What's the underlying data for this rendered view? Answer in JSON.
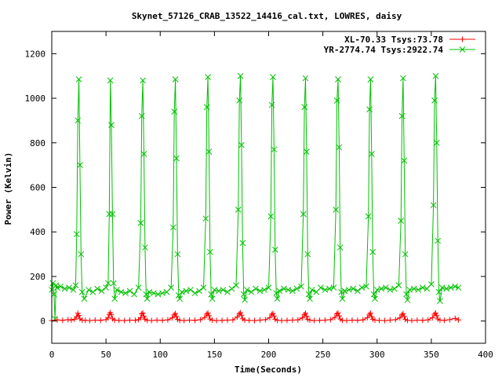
{
  "chart_data": {
    "type": "line",
    "title": "Skynet_57126_CRAB_13522_14416_cal.txt, LOWRES, daisy",
    "xlabel": "Time(Seconds)",
    "ylabel": "Power (Kelvin)",
    "xlim": [
      0,
      400
    ],
    "ylim": [
      -100,
      1300
    ],
    "xticks": [
      0,
      50,
      100,
      150,
      200,
      250,
      300,
      350,
      400
    ],
    "yticks": [
      0,
      200,
      400,
      600,
      800,
      1000,
      1200
    ],
    "grid": false,
    "legend_position": "top-right",
    "series": [
      {
        "name": "XL-70.33 Tsys:73.78",
        "color": "#ff0000",
        "marker": "plus",
        "x": [
          0,
          5,
          10,
          15,
          18,
          21,
          23,
          24,
          25,
          26,
          28,
          31,
          35,
          40,
          45,
          50,
          52,
          53,
          54,
          55,
          56,
          58,
          62,
          67,
          72,
          77,
          80,
          82,
          83,
          84,
          85,
          86,
          88,
          92,
          97,
          102,
          107,
          111,
          113,
          114,
          115,
          116,
          118,
          122,
          127,
          132,
          137,
          141,
          143,
          144,
          145,
          146,
          148,
          152,
          157,
          162,
          167,
          171,
          173,
          174,
          175,
          176,
          178,
          182,
          187,
          192,
          197,
          201,
          203,
          204,
          205,
          206,
          208,
          212,
          217,
          222,
          227,
          231,
          233,
          234,
          235,
          236,
          238,
          242,
          247,
          252,
          257,
          261,
          263,
          264,
          265,
          266,
          268,
          272,
          277,
          282,
          287,
          291,
          293,
          294,
          295,
          296,
          298,
          302,
          307,
          312,
          317,
          321,
          323,
          324,
          325,
          326,
          328,
          332,
          337,
          342,
          347,
          351,
          353,
          354,
          355,
          356,
          358,
          362,
          367,
          372,
          375
        ],
        "y": [
          2,
          5,
          3,
          6,
          4,
          8,
          20,
          35,
          25,
          10,
          4,
          3,
          2,
          4,
          3,
          6,
          15,
          30,
          38,
          28,
          10,
          4,
          3,
          2,
          4,
          3,
          6,
          15,
          32,
          36,
          22,
          8,
          3,
          2,
          4,
          3,
          5,
          14,
          28,
          34,
          20,
          7,
          3,
          2,
          4,
          3,
          6,
          16,
          31,
          36,
          24,
          9,
          4,
          2,
          3,
          4,
          5,
          18,
          33,
          37,
          26,
          10,
          4,
          3,
          2,
          4,
          6,
          15,
          30,
          34,
          22,
          8,
          3,
          2,
          3,
          4,
          5,
          14,
          29,
          35,
          21,
          7,
          4,
          2,
          3,
          4,
          6,
          16,
          32,
          36,
          23,
          9,
          3,
          2,
          4,
          3,
          5,
          15,
          30,
          35,
          20,
          8,
          4,
          3,
          2,
          4,
          6,
          14,
          28,
          33,
          21,
          7,
          3,
          2,
          4,
          3,
          5,
          15,
          31,
          36,
          24,
          9,
          4,
          3,
          6,
          12,
          5
        ]
      },
      {
        "name": "YR-2774.74 Tsys:2922.74",
        "color": "#00c000",
        "marker": "cross",
        "x": [
          0,
          1,
          2,
          3,
          4,
          5,
          8,
          12,
          16,
          20,
          22,
          23,
          24,
          25,
          26,
          27,
          28,
          30,
          34,
          38,
          42,
          46,
          50,
          52,
          53,
          54,
          55,
          56,
          57,
          58,
          60,
          64,
          68,
          72,
          76,
          80,
          82,
          83,
          84,
          85,
          86,
          87,
          88,
          90,
          94,
          98,
          102,
          106,
          110,
          112,
          113,
          114,
          115,
          116,
          117,
          118,
          120,
          124,
          128,
          132,
          136,
          140,
          142,
          143,
          144,
          145,
          146,
          147,
          148,
          150,
          154,
          158,
          162,
          166,
          170,
          172,
          173,
          174,
          175,
          176,
          177,
          178,
          180,
          184,
          188,
          192,
          196,
          200,
          202,
          203,
          204,
          205,
          206,
          207,
          208,
          210,
          214,
          218,
          222,
          226,
          230,
          232,
          233,
          234,
          235,
          236,
          237,
          238,
          240,
          244,
          248,
          252,
          256,
          260,
          262,
          263,
          264,
          265,
          266,
          267,
          268,
          270,
          274,
          278,
          282,
          286,
          290,
          292,
          293,
          294,
          295,
          296,
          297,
          298,
          300,
          304,
          308,
          312,
          316,
          320,
          322,
          323,
          324,
          325,
          326,
          327,
          328,
          330,
          334,
          338,
          342,
          346,
          350,
          352,
          353,
          354,
          355,
          356,
          357,
          358,
          360,
          364,
          368,
          372,
          375
        ],
        "y": [
          140,
          170,
          120,
          10,
          160,
          150,
          155,
          145,
          150,
          140,
          160,
          390,
          900,
          1085,
          700,
          300,
          130,
          100,
          140,
          130,
          145,
          135,
          150,
          170,
          480,
          1080,
          880,
          480,
          170,
          100,
          140,
          130,
          125,
          135,
          120,
          150,
          440,
          920,
          1080,
          750,
          330,
          120,
          100,
          130,
          125,
          120,
          125,
          130,
          150,
          420,
          940,
          1085,
          730,
          300,
          115,
          100,
          130,
          135,
          140,
          125,
          135,
          150,
          460,
          960,
          1095,
          760,
          310,
          120,
          100,
          140,
          135,
          140,
          130,
          145,
          160,
          500,
          990,
          1100,
          790,
          350,
          120,
          95,
          140,
          130,
          145,
          135,
          140,
          150,
          470,
          970,
          1095,
          770,
          320,
          125,
          100,
          135,
          145,
          140,
          135,
          145,
          155,
          480,
          960,
          1090,
          760,
          300,
          120,
          100,
          140,
          130,
          150,
          140,
          145,
          150,
          500,
          990,
          1085,
          780,
          330,
          130,
          100,
          135,
          140,
          145,
          135,
          150,
          155,
          470,
          950,
          1085,
          750,
          310,
          120,
          100,
          140,
          145,
          150,
          140,
          145,
          160,
          450,
          920,
          1090,
          720,
          300,
          120,
          95,
          140,
          145,
          140,
          150,
          145,
          165,
          520,
          990,
          1100,
          800,
          360,
          130,
          90,
          150,
          145,
          150,
          155,
          150
        ]
      }
    ]
  }
}
